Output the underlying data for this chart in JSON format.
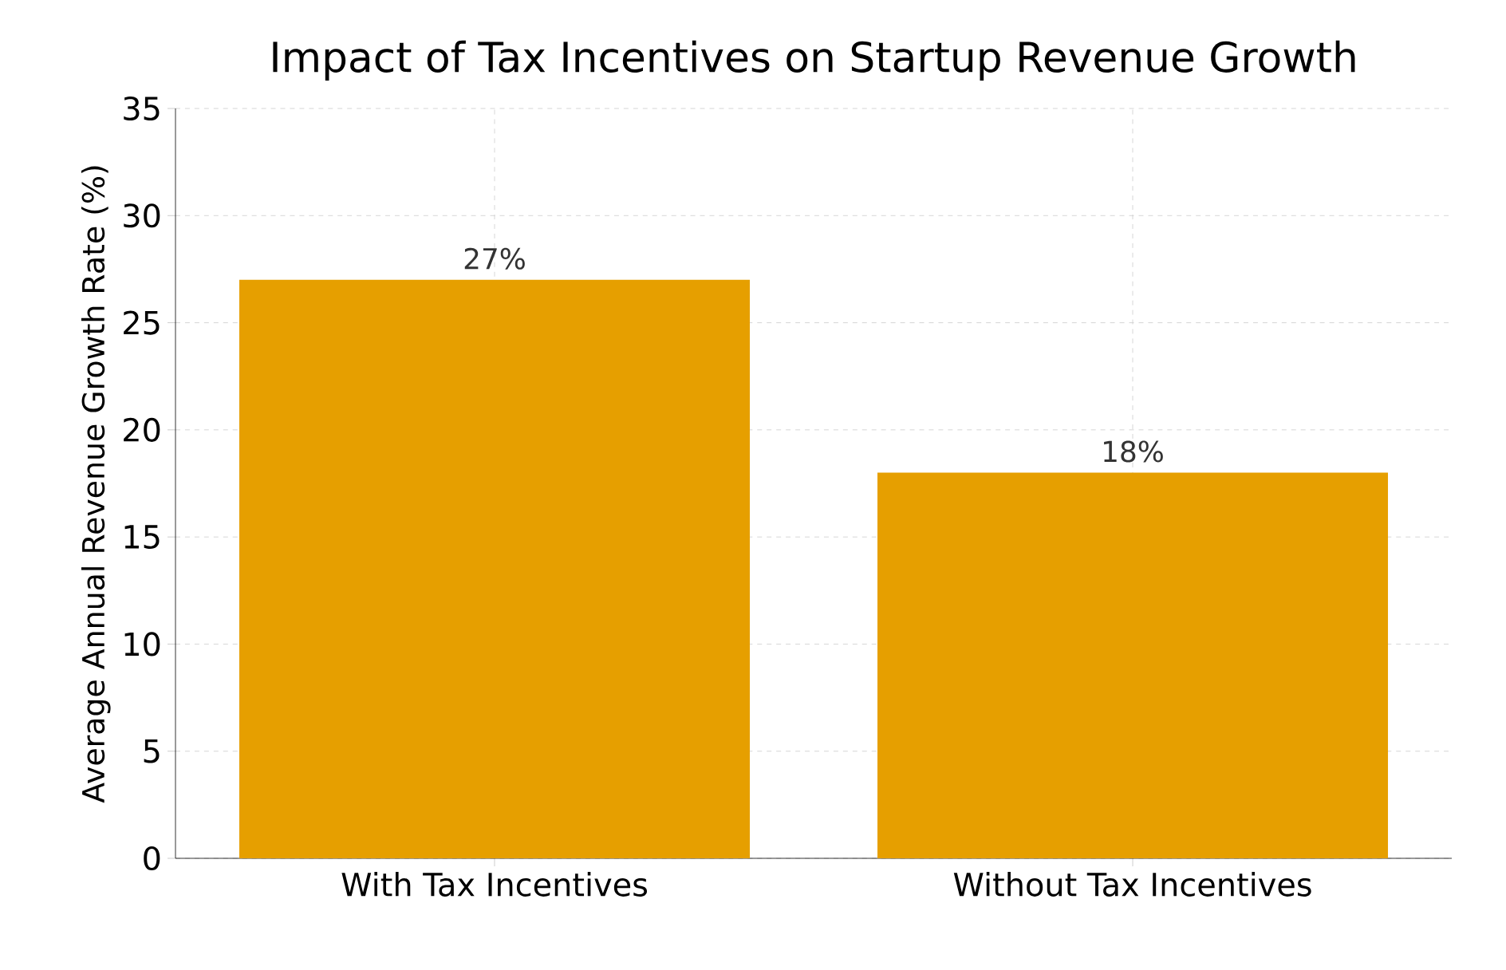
{
  "chart_data": {
    "type": "bar",
    "title": "Impact of Tax Incentives on Startup Revenue Growth",
    "ylabel": "Average Annual Revenue Growth Rate (%)",
    "categories": [
      "With Tax Incentives",
      "Without Tax Incentives"
    ],
    "values": [
      27,
      18
    ],
    "value_labels": [
      "27%",
      "18%"
    ],
    "color": "#e69f00",
    "ylim": [
      0,
      35
    ],
    "yticks": [
      0,
      5,
      10,
      15,
      20,
      25,
      30,
      35
    ],
    "grid": true
  }
}
